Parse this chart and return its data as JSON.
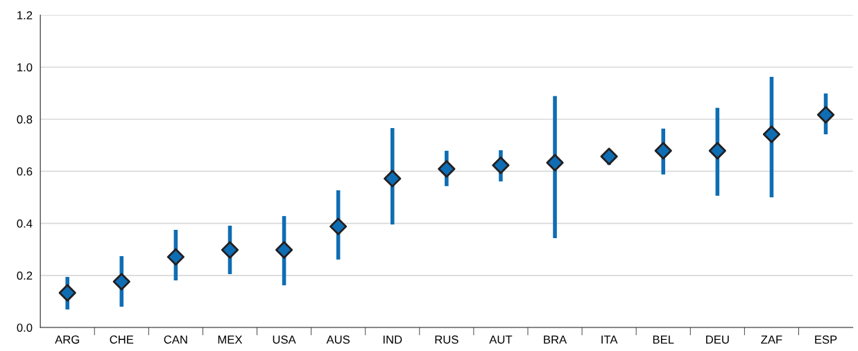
{
  "chart_data": {
    "type": "scatter",
    "categories": [
      "ARG",
      "CHE",
      "CAN",
      "MEX",
      "USA",
      "AUS",
      "IND",
      "RUS",
      "AUT",
      "BRA",
      "ITA",
      "BEL",
      "DEU",
      "ZAF",
      "ESP"
    ],
    "values": [
      0.133,
      0.176,
      0.271,
      0.298,
      0.298,
      0.388,
      0.572,
      0.609,
      0.623,
      0.633,
      0.657,
      0.679,
      0.679,
      0.742,
      0.817
    ],
    "errors": [
      [
        0.069,
        0.194
      ],
      [
        0.08,
        0.274
      ],
      [
        0.181,
        0.375
      ],
      [
        0.205,
        0.391
      ],
      [
        0.162,
        0.428
      ],
      [
        0.261,
        0.527
      ],
      [
        0.396,
        0.766
      ],
      [
        0.543,
        0.679
      ],
      [
        0.561,
        0.681
      ],
      [
        0.343,
        0.889
      ],
      [
        0.625,
        0.684
      ],
      [
        0.588,
        0.764
      ],
      [
        0.506,
        0.844
      ],
      [
        0.5,
        0.963
      ],
      [
        0.742,
        0.899
      ]
    ],
    "color": "#0f6db3",
    "marker": "diamond",
    "ylim": [
      0,
      1.2
    ],
    "yticks": [
      {
        "value": 0,
        "label": "0.0"
      },
      {
        "value": 0.2,
        "label": "0.2"
      },
      {
        "value": 0.4,
        "label": "0.4"
      },
      {
        "value": 0.6,
        "label": "0.6"
      },
      {
        "value": 0.8,
        "label": "0.8"
      },
      {
        "value": 1.0,
        "label": "1.0"
      },
      {
        "value": 1.2,
        "label": "1.2"
      }
    ],
    "grid": "y",
    "legend": false
  }
}
